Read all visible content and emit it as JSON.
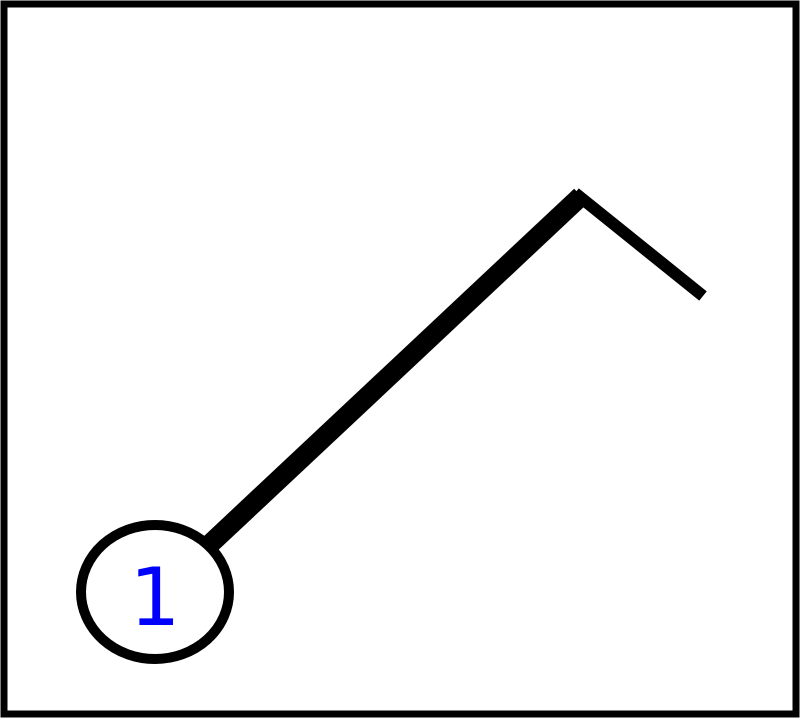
{
  "diagram": {
    "node": {
      "label": "1",
      "label_color": "#0000ff",
      "outline_color": "#000000"
    },
    "border_color": "#000000",
    "line_color": "#000000",
    "background": "#ffffff"
  }
}
